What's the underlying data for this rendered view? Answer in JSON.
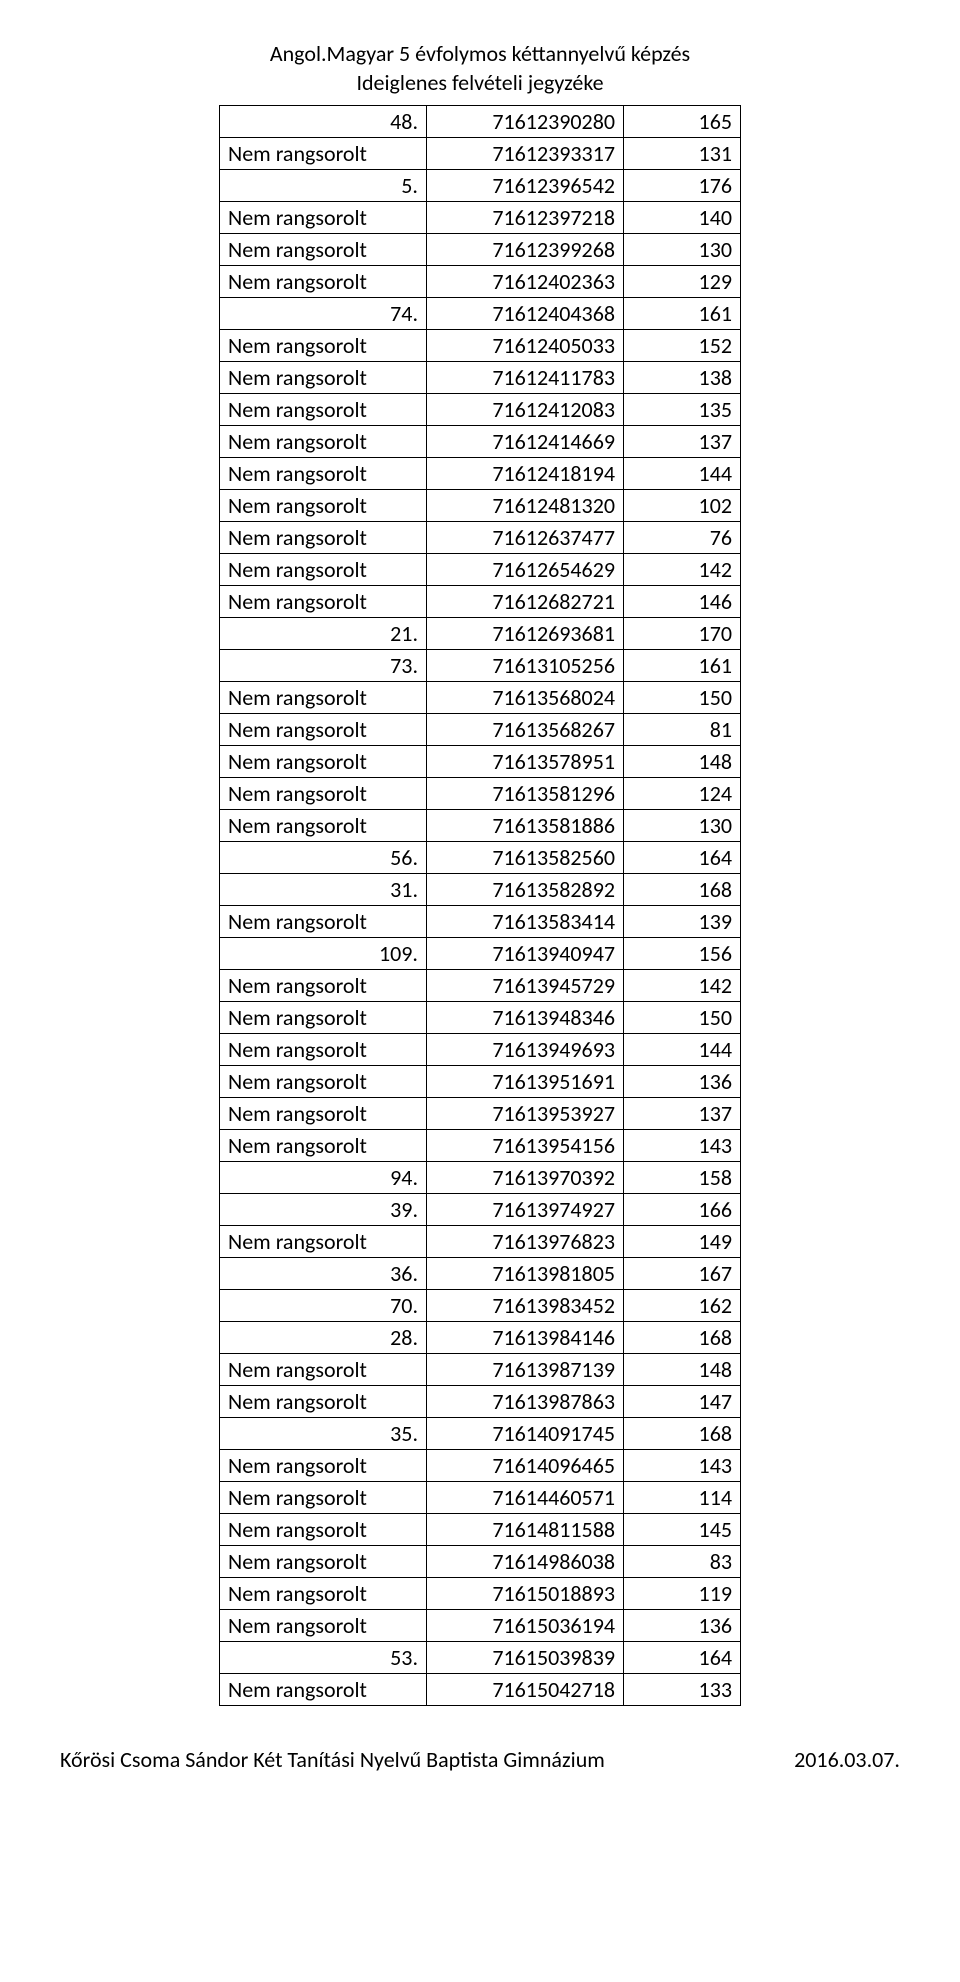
{
  "header": {
    "line1": "Angol.Magyar 5 évfolymos kéttannyelvű képzés",
    "line2": "Ideiglenes felvételi jegyzéke"
  },
  "rows": [
    {
      "c0": "48.",
      "c1": "71612390280",
      "c2": "165",
      "num": true
    },
    {
      "c0": "Nem rangsorolt",
      "c1": "71612393317",
      "c2": "131",
      "num": false
    },
    {
      "c0": "5.",
      "c1": "71612396542",
      "c2": "176",
      "num": true
    },
    {
      "c0": "Nem rangsorolt",
      "c1": "71612397218",
      "c2": "140",
      "num": false
    },
    {
      "c0": "Nem rangsorolt",
      "c1": "71612399268",
      "c2": "130",
      "num": false
    },
    {
      "c0": "Nem rangsorolt",
      "c1": "71612402363",
      "c2": "129",
      "num": false
    },
    {
      "c0": "74.",
      "c1": "71612404368",
      "c2": "161",
      "num": true
    },
    {
      "c0": "Nem rangsorolt",
      "c1": "71612405033",
      "c2": "152",
      "num": false
    },
    {
      "c0": "Nem rangsorolt",
      "c1": "71612411783",
      "c2": "138",
      "num": false
    },
    {
      "c0": "Nem rangsorolt",
      "c1": "71612412083",
      "c2": "135",
      "num": false
    },
    {
      "c0": "Nem rangsorolt",
      "c1": "71612414669",
      "c2": "137",
      "num": false
    },
    {
      "c0": "Nem rangsorolt",
      "c1": "71612418194",
      "c2": "144",
      "num": false
    },
    {
      "c0": "Nem rangsorolt",
      "c1": "71612481320",
      "c2": "102",
      "num": false
    },
    {
      "c0": "Nem rangsorolt",
      "c1": "71612637477",
      "c2": "76",
      "num": false
    },
    {
      "c0": "Nem rangsorolt",
      "c1": "71612654629",
      "c2": "142",
      "num": false
    },
    {
      "c0": "Nem rangsorolt",
      "c1": "71612682721",
      "c2": "146",
      "num": false
    },
    {
      "c0": "21.",
      "c1": "71612693681",
      "c2": "170",
      "num": true
    },
    {
      "c0": "73.",
      "c1": "71613105256",
      "c2": "161",
      "num": true
    },
    {
      "c0": "Nem rangsorolt",
      "c1": "71613568024",
      "c2": "150",
      "num": false
    },
    {
      "c0": "Nem rangsorolt",
      "c1": "71613568267",
      "c2": "81",
      "num": false
    },
    {
      "c0": "Nem rangsorolt",
      "c1": "71613578951",
      "c2": "148",
      "num": false
    },
    {
      "c0": "Nem rangsorolt",
      "c1": "71613581296",
      "c2": "124",
      "num": false
    },
    {
      "c0": "Nem rangsorolt",
      "c1": "71613581886",
      "c2": "130",
      "num": false
    },
    {
      "c0": "56.",
      "c1": "71613582560",
      "c2": "164",
      "num": true
    },
    {
      "c0": "31.",
      "c1": "71613582892",
      "c2": "168",
      "num": true
    },
    {
      "c0": "Nem rangsorolt",
      "c1": "71613583414",
      "c2": "139",
      "num": false
    },
    {
      "c0": "109.",
      "c1": "71613940947",
      "c2": "156",
      "num": true
    },
    {
      "c0": "Nem rangsorolt",
      "c1": "71613945729",
      "c2": "142",
      "num": false
    },
    {
      "c0": "Nem rangsorolt",
      "c1": "71613948346",
      "c2": "150",
      "num": false
    },
    {
      "c0": "Nem rangsorolt",
      "c1": "71613949693",
      "c2": "144",
      "num": false
    },
    {
      "c0": "Nem rangsorolt",
      "c1": "71613951691",
      "c2": "136",
      "num": false
    },
    {
      "c0": "Nem rangsorolt",
      "c1": "71613953927",
      "c2": "137",
      "num": false
    },
    {
      "c0": "Nem rangsorolt",
      "c1": "71613954156",
      "c2": "143",
      "num": false
    },
    {
      "c0": "94.",
      "c1": "71613970392",
      "c2": "158",
      "num": true
    },
    {
      "c0": "39.",
      "c1": "71613974927",
      "c2": "166",
      "num": true
    },
    {
      "c0": "Nem rangsorolt",
      "c1": "71613976823",
      "c2": "149",
      "num": false
    },
    {
      "c0": "36.",
      "c1": "71613981805",
      "c2": "167",
      "num": true
    },
    {
      "c0": "70.",
      "c1": "71613983452",
      "c2": "162",
      "num": true
    },
    {
      "c0": "28.",
      "c1": "71613984146",
      "c2": "168",
      "num": true
    },
    {
      "c0": "Nem rangsorolt",
      "c1": "71613987139",
      "c2": "148",
      "num": false
    },
    {
      "c0": "Nem rangsorolt",
      "c1": "71613987863",
      "c2": "147",
      "num": false
    },
    {
      "c0": "35.",
      "c1": "71614091745",
      "c2": "168",
      "num": true
    },
    {
      "c0": "Nem rangsorolt",
      "c1": "71614096465",
      "c2": "143",
      "num": false
    },
    {
      "c0": "Nem rangsorolt",
      "c1": "71614460571",
      "c2": "114",
      "num": false
    },
    {
      "c0": "Nem rangsorolt",
      "c1": "71614811588",
      "c2": "145",
      "num": false
    },
    {
      "c0": "Nem rangsorolt",
      "c1": "71614986038",
      "c2": "83",
      "num": false
    },
    {
      "c0": "Nem rangsorolt",
      "c1": "71615018893",
      "c2": "119",
      "num": false
    },
    {
      "c0": "Nem rangsorolt",
      "c1": "71615036194",
      "c2": "136",
      "num": false
    },
    {
      "c0": "53.",
      "c1": "71615039839",
      "c2": "164",
      "num": true
    },
    {
      "c0": "Nem rangsorolt",
      "c1": "71615042718",
      "c2": "133",
      "num": false
    }
  ],
  "footer": {
    "left": "Kőrösi Csoma Sándor Két Tanítási Nyelvű Baptista Gimnázium",
    "right": "2016.03.07."
  }
}
